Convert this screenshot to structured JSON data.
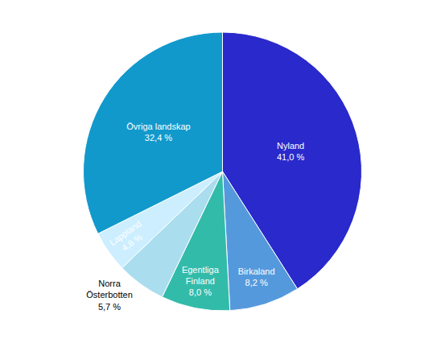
{
  "chart_data": {
    "type": "pie",
    "categories": [
      "Nyland\n41,0 %",
      "Birkaland\n8,2 %",
      "Egentliga\nFinland\n8,0 %",
      "Norra\nÖsterbotten\n5,7 %",
      "Lappland\n4,8 %",
      "Övriga landskap\n32,4 %"
    ],
    "values": [
      41.0,
      8.2,
      8.0,
      5.7,
      4.8,
      32.4
    ],
    "colors": [
      "#2929CC",
      "#5599DD",
      "#33BBAA",
      "#AADDEE",
      "#CCEEFF",
      "#1199CC"
    ],
    "data_labels": true
  }
}
